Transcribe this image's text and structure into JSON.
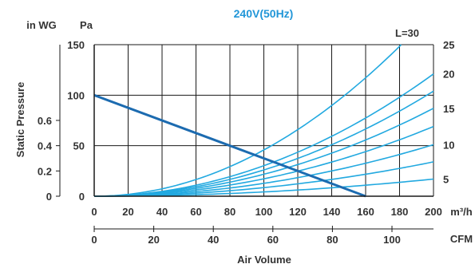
{
  "chart_data": {
    "type": "line",
    "title": "240V(50Hz)",
    "xlabel": "Air Volume",
    "ylabel": "Static Pressure",
    "x_unit": "m³/h",
    "x_secondary_unit": "CFM",
    "y_unit": "Pa",
    "y_secondary_unit": "in WG",
    "xlim": [
      0,
      200
    ],
    "ylim": [
      0,
      150
    ],
    "x_ticks": [
      0,
      20,
      40,
      60,
      80,
      100,
      120,
      140,
      160,
      180,
      200
    ],
    "y_ticks": [
      0,
      50,
      100,
      150
    ],
    "x_secondary_ticks": [
      0,
      20,
      40,
      60,
      80,
      100
    ],
    "y_secondary_ticks": [
      "0",
      "0.2",
      "0.4",
      "0.6"
    ],
    "grid": true,
    "fan_curve": {
      "x": [
        0,
        160
      ],
      "y": [
        100,
        0
      ]
    },
    "duct_curves": [
      {
        "label": "5",
        "x": [
          0,
          200
        ],
        "y": [
          0,
          17
        ],
        "power": 2
      },
      {
        "label": "",
        "x": [
          0,
          200
        ],
        "y": [
          0,
          34
        ],
        "power": 2
      },
      {
        "label": "10",
        "x": [
          0,
          200
        ],
        "y": [
          0,
          51
        ],
        "power": 2
      },
      {
        "label": "",
        "x": [
          0,
          200
        ],
        "y": [
          0,
          69
        ],
        "power": 2
      },
      {
        "label": "15",
        "x": [
          0,
          200
        ],
        "y": [
          0,
          87
        ],
        "power": 2
      },
      {
        "label": "",
        "x": [
          0,
          200
        ],
        "y": [
          0,
          104
        ],
        "power": 2
      },
      {
        "label": "20",
        "x": [
          0,
          200
        ],
        "y": [
          0,
          121
        ],
        "power": 2
      },
      {
        "label": "25",
        "x": [
          0,
          181
        ],
        "y": [
          0,
          150
        ],
        "power": 2
      }
    ],
    "annotation": "L=30",
    "colors": {
      "fan": "#1c6bb0",
      "duct": "#22a9e0",
      "title": "#2196d8",
      "grid": "#1a1a1a"
    }
  }
}
